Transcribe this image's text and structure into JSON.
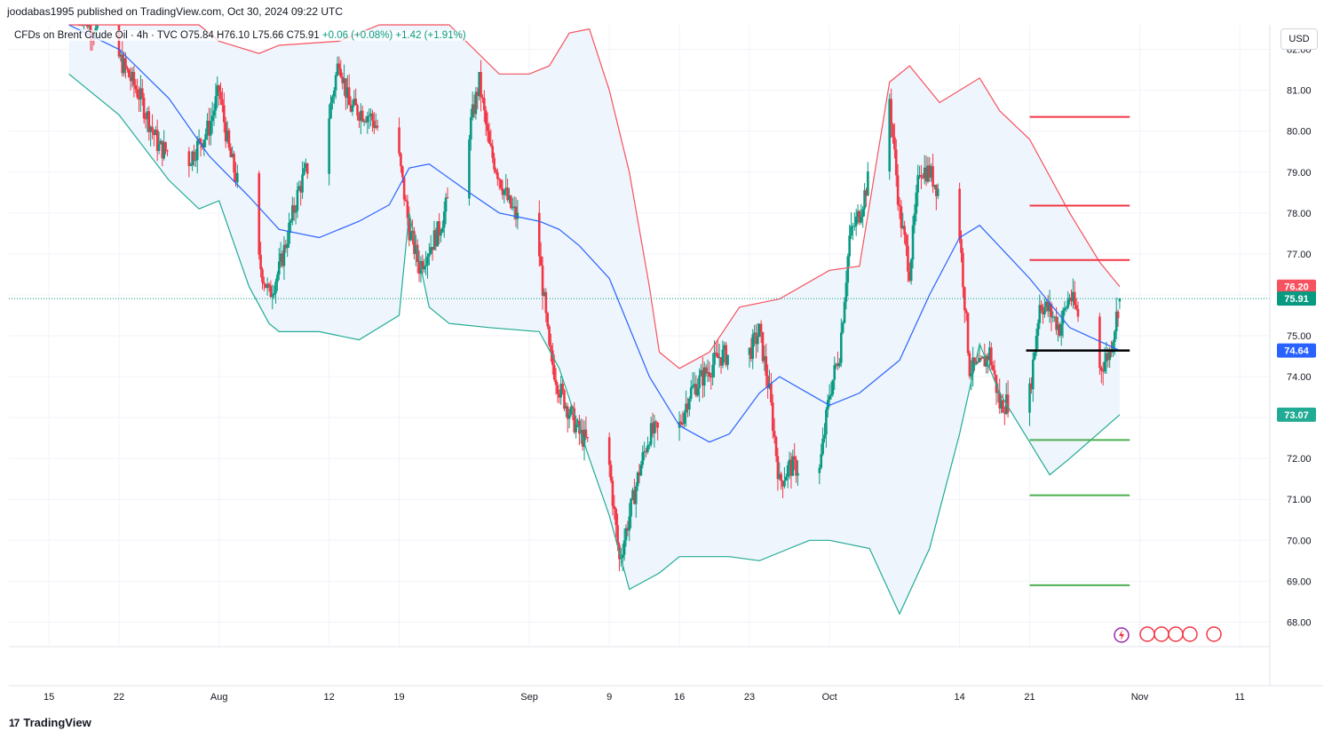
{
  "header": {
    "published": "joodabas1995 published on TradingView.com, Oct 30, 2024 09:22 UTC",
    "symbol": "CFDs on Brent Crude Oil · 4h · TVC",
    "ohlc": "O75.84 H76.10 L75.66 C75.91",
    "change": "+0.06 (+0.08%) +1.42 (+1.91%)"
  },
  "currency_button": "USD",
  "footer": {
    "brand": "TradingView",
    "mark": "17"
  },
  "colors": {
    "bullish": "#089981",
    "bearish": "#f23645",
    "upper_band": "#f7525f",
    "lower_band": "#22ab94",
    "basis": "#2962ff",
    "band_fill": "#eef5fc",
    "resistance": "#f23645",
    "support": "#4caf50",
    "pivot": "#000000"
  },
  "chart_data": {
    "type": "candlestick",
    "instrument": "CFDs on Brent Crude Oil",
    "timeframe": "4h",
    "y_axis": {
      "ticks": [
        82.0,
        81.0,
        80.0,
        79.0,
        78.0,
        77.0,
        76.0,
        75.0,
        74.0,
        73.0,
        72.0,
        71.0,
        70.0,
        69.0,
        68.0
      ],
      "labels": [
        "82.00",
        "81.00",
        "80.00",
        "79.00",
        "78.00",
        "77.00",
        "",
        "75.00",
        "74.00",
        "",
        "72.00",
        "71.00",
        "70.00",
        "69.00",
        "68.00"
      ],
      "range": [
        67.4,
        82.6
      ]
    },
    "x_axis": {
      "labels": [
        "15",
        "22",
        "Aug",
        "12",
        "19",
        "Sep",
        "9",
        "16",
        "23",
        "Oct",
        "14",
        "21",
        "Nov",
        "11"
      ],
      "dates": [
        "2024-07-15",
        "2024-07-22",
        "2024-08-01",
        "2024-08-12",
        "2024-08-19",
        "2024-09-01",
        "2024-09-09",
        "2024-09-16",
        "2024-09-23",
        "2024-10-01",
        "2024-10-14",
        "2024-10-21",
        "2024-11-01",
        "2024-11-11"
      ],
      "range": [
        "2024-07-11",
        "2024-11-14"
      ]
    },
    "price_tags": [
      {
        "label": "76.20",
        "value": 76.2,
        "role": "upper band"
      },
      {
        "label": "75.91",
        "value": 75.91,
        "role": "last price"
      },
      {
        "label": "74.64",
        "value": 74.64,
        "role": "basis"
      },
      {
        "label": "73.07",
        "value": 73.07,
        "role": "lower band"
      }
    ],
    "levels": [
      {
        "value": 80.35,
        "role": "resistance"
      },
      {
        "value": 78.18,
        "role": "resistance"
      },
      {
        "value": 76.85,
        "role": "resistance"
      },
      {
        "value": 74.64,
        "role": "pivot"
      },
      {
        "value": 72.45,
        "role": "support"
      },
      {
        "value": 71.1,
        "role": "support"
      },
      {
        "value": 68.9,
        "role": "support"
      }
    ],
    "levels_start": "2024-10-21",
    "levels_end": "2024-10-31",
    "close_path": [
      [
        "2024-07-18",
        83.2
      ],
      [
        "2024-07-19",
        82.6
      ],
      [
        "2024-07-22",
        81.8
      ],
      [
        "2024-07-24",
        80.9
      ],
      [
        "2024-07-26",
        79.6
      ],
      [
        "2024-07-29",
        79.3
      ],
      [
        "2024-07-31",
        80.1
      ],
      [
        "2024-08-01",
        81.0
      ],
      [
        "2024-08-02",
        79.5
      ],
      [
        "2024-08-05",
        76.8
      ],
      [
        "2024-08-06",
        76.0
      ],
      [
        "2024-08-07",
        76.6
      ],
      [
        "2024-08-09",
        78.6
      ],
      [
        "2024-08-12",
        80.4
      ],
      [
        "2024-08-13",
        81.8
      ],
      [
        "2024-08-14",
        80.6
      ],
      [
        "2024-08-16",
        80.4
      ],
      [
        "2024-08-19",
        79.3
      ],
      [
        "2024-08-20",
        77.6
      ],
      [
        "2024-08-21",
        76.7
      ],
      [
        "2024-08-23",
        77.6
      ],
      [
        "2024-08-26",
        80.0
      ],
      [
        "2024-08-27",
        81.2
      ],
      [
        "2024-08-28",
        79.6
      ],
      [
        "2024-08-30",
        78.2
      ],
      [
        "2024-09-02",
        77.0
      ],
      [
        "2024-09-03",
        74.6
      ],
      [
        "2024-09-04",
        73.7
      ],
      [
        "2024-09-06",
        72.6
      ],
      [
        "2024-09-09",
        71.8
      ],
      [
        "2024-09-10",
        69.5
      ],
      [
        "2024-09-11",
        70.6
      ],
      [
        "2024-09-12",
        71.7
      ],
      [
        "2024-09-13",
        72.6
      ],
      [
        "2024-09-16",
        72.8
      ],
      [
        "2024-09-17",
        73.6
      ],
      [
        "2024-09-19",
        74.2
      ],
      [
        "2024-09-20",
        74.5
      ],
      [
        "2024-09-23",
        74.6
      ],
      [
        "2024-09-24",
        75.1
      ],
      [
        "2024-09-25",
        73.6
      ],
      [
        "2024-09-26",
        71.4
      ],
      [
        "2024-09-27",
        71.8
      ],
      [
        "2024-09-30",
        71.7
      ],
      [
        "2024-10-01",
        73.6
      ],
      [
        "2024-10-02",
        74.6
      ],
      [
        "2024-10-03",
        77.4
      ],
      [
        "2024-10-04",
        78.0
      ],
      [
        "2024-10-07",
        80.8
      ],
      [
        "2024-10-08",
        78.0
      ],
      [
        "2024-10-09",
        76.6
      ],
      [
        "2024-10-10",
        79.1
      ],
      [
        "2024-10-11",
        79.0
      ],
      [
        "2024-10-14",
        77.5
      ],
      [
        "2024-10-15",
        74.2
      ],
      [
        "2024-10-16",
        74.2
      ],
      [
        "2024-10-17",
        74.6
      ],
      [
        "2024-10-18",
        73.3
      ],
      [
        "2024-10-21",
        73.6
      ],
      [
        "2024-10-22",
        75.8
      ],
      [
        "2024-10-23",
        75.6
      ],
      [
        "2024-10-24",
        75.2
      ],
      [
        "2024-10-25",
        76.0
      ],
      [
        "2024-10-28",
        74.2
      ],
      [
        "2024-10-29",
        74.6
      ],
      [
        "2024-10-30",
        75.91
      ]
    ],
    "upper_band": [
      [
        "2024-07-17",
        84.2
      ],
      [
        "2024-07-22",
        83.6
      ],
      [
        "2024-07-30",
        82.8
      ],
      [
        "2024-08-01",
        82.2
      ],
      [
        "2024-08-05",
        81.9
      ],
      [
        "2024-08-07",
        82.1
      ],
      [
        "2024-08-13",
        82.2
      ],
      [
        "2024-08-17",
        82.9
      ],
      [
        "2024-08-24",
        82.8
      ],
      [
        "2024-08-29",
        81.4
      ],
      [
        "2024-09-01",
        81.4
      ],
      [
        "2024-09-03",
        81.6
      ],
      [
        "2024-09-05",
        82.4
      ],
      [
        "2024-09-07",
        82.5
      ],
      [
        "2024-09-09",
        81.0
      ],
      [
        "2024-09-11",
        79.0
      ],
      [
        "2024-09-13",
        76.2
      ],
      [
        "2024-09-14",
        74.6
      ],
      [
        "2024-09-16",
        74.2
      ],
      [
        "2024-09-19",
        74.6
      ],
      [
        "2024-09-22",
        75.7
      ],
      [
        "2024-09-26",
        75.9
      ],
      [
        "2024-10-01",
        76.6
      ],
      [
        "2024-10-04",
        76.7
      ],
      [
        "2024-10-07",
        81.2
      ],
      [
        "2024-10-09",
        81.6
      ],
      [
        "2024-10-12",
        80.7
      ],
      [
        "2024-10-16",
        81.3
      ],
      [
        "2024-10-18",
        80.5
      ],
      [
        "2024-10-21",
        79.8
      ],
      [
        "2024-10-25",
        78.0
      ],
      [
        "2024-10-28",
        76.8
      ],
      [
        "2024-10-30",
        76.2
      ]
    ],
    "basis": [
      [
        "2024-07-17",
        82.8
      ],
      [
        "2024-07-22",
        82.0
      ],
      [
        "2024-07-27",
        80.8
      ],
      [
        "2024-07-31",
        79.4
      ],
      [
        "2024-08-04",
        78.4
      ],
      [
        "2024-08-07",
        77.6
      ],
      [
        "2024-08-11",
        77.4
      ],
      [
        "2024-08-15",
        77.8
      ],
      [
        "2024-08-18",
        78.2
      ],
      [
        "2024-08-20",
        79.1
      ],
      [
        "2024-08-22",
        79.2
      ],
      [
        "2024-08-26",
        78.5
      ],
      [
        "2024-08-29",
        78.0
      ],
      [
        "2024-09-02",
        77.8
      ],
      [
        "2024-09-04",
        77.6
      ],
      [
        "2024-09-06",
        77.2
      ],
      [
        "2024-09-09",
        76.4
      ],
      [
        "2024-09-13",
        74.0
      ],
      [
        "2024-09-16",
        72.8
      ],
      [
        "2024-09-19",
        72.4
      ],
      [
        "2024-09-21",
        72.6
      ],
      [
        "2024-09-24",
        73.6
      ],
      [
        "2024-09-26",
        74.0
      ],
      [
        "2024-10-01",
        73.3
      ],
      [
        "2024-10-04",
        73.6
      ],
      [
        "2024-10-08",
        74.4
      ],
      [
        "2024-10-11",
        76.0
      ],
      [
        "2024-10-14",
        77.4
      ],
      [
        "2024-10-16",
        77.7
      ],
      [
        "2024-10-21",
        76.4
      ],
      [
        "2024-10-25",
        75.2
      ],
      [
        "2024-10-30",
        74.64
      ]
    ],
    "lower_band": [
      [
        "2024-07-17",
        81.4
      ],
      [
        "2024-07-22",
        80.4
      ],
      [
        "2024-07-27",
        78.8
      ],
      [
        "2024-07-30",
        78.1
      ],
      [
        "2024-08-01",
        78.3
      ],
      [
        "2024-08-04",
        76.2
      ],
      [
        "2024-08-06",
        75.3
      ],
      [
        "2024-08-07",
        75.1
      ],
      [
        "2024-08-11",
        75.1
      ],
      [
        "2024-08-15",
        74.9
      ],
      [
        "2024-08-19",
        75.5
      ],
      [
        "2024-08-20",
        78.0
      ],
      [
        "2024-08-22",
        75.7
      ],
      [
        "2024-08-24",
        75.3
      ],
      [
        "2024-08-28",
        75.2
      ],
      [
        "2024-09-02",
        75.1
      ],
      [
        "2024-09-04",
        74.2
      ],
      [
        "2024-09-07",
        72.0
      ],
      [
        "2024-09-09",
        70.6
      ],
      [
        "2024-09-11",
        68.8
      ],
      [
        "2024-09-14",
        69.2
      ],
      [
        "2024-09-16",
        69.6
      ],
      [
        "2024-09-21",
        69.6
      ],
      [
        "2024-09-24",
        69.5
      ],
      [
        "2024-09-27",
        69.8
      ],
      [
        "2024-09-29",
        70.0
      ],
      [
        "2024-10-01",
        70.0
      ],
      [
        "2024-10-05",
        69.8
      ],
      [
        "2024-10-08",
        68.2
      ],
      [
        "2024-10-11",
        69.8
      ],
      [
        "2024-10-14",
        72.6
      ],
      [
        "2024-10-16",
        74.8
      ],
      [
        "2024-10-18",
        73.6
      ],
      [
        "2024-10-21",
        72.4
      ],
      [
        "2024-10-23",
        71.6
      ],
      [
        "2024-10-25",
        72.0
      ],
      [
        "2024-10-30",
        73.07
      ]
    ]
  }
}
